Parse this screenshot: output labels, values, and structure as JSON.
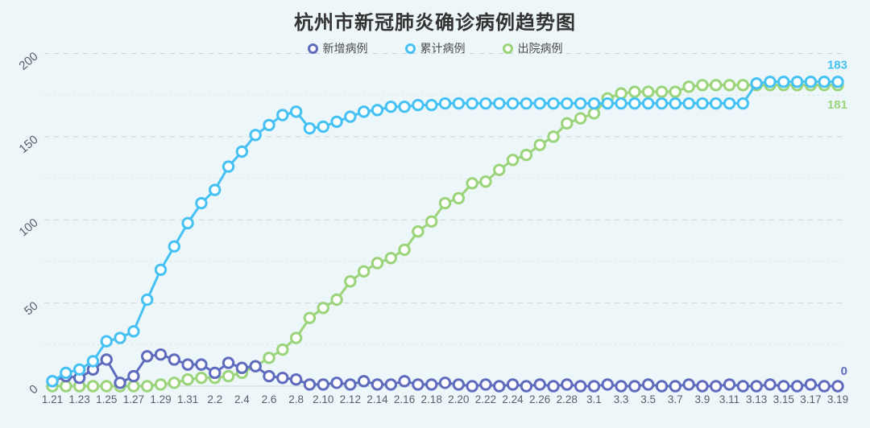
{
  "title": "杭州市新冠肺炎确诊病例趋势图",
  "colors": {
    "background": "#edf6f8",
    "title_text": "#333333",
    "axis_text": "#55606a",
    "grid_major": "#c9d6db",
    "grid_minor": "#d8e3e7",
    "axis_line": "#ccd6da"
  },
  "chart_data": {
    "type": "line",
    "title": "杭州市新冠肺炎确诊病例趋势图",
    "xlabel": "",
    "ylabel": "",
    "ylim": [
      0,
      200
    ],
    "y_ticks_labeled": [
      0,
      50,
      100,
      150,
      200
    ],
    "y_grid_interval": 25,
    "x_tick_step": 2,
    "grid": true,
    "legend_position": "top",
    "marker": "open-circle",
    "draw_order": [
      2,
      0,
      1
    ],
    "x": [
      "1.21",
      "1.22",
      "1.23",
      "1.24",
      "1.25",
      "1.26",
      "1.27",
      "1.28",
      "1.29",
      "1.30",
      "1.31",
      "2.1",
      "2.2",
      "2.3",
      "2.4",
      "2.5",
      "2.6",
      "2.7",
      "2.8",
      "2.9",
      "2.10",
      "2.11",
      "2.12",
      "2.13",
      "2.14",
      "2.15",
      "2.16",
      "2.17",
      "2.18",
      "2.19",
      "2.20",
      "2.21",
      "2.22",
      "2.23",
      "2.24",
      "2.25",
      "2.26",
      "2.27",
      "2.28",
      "2.29",
      "3.1",
      "3.2",
      "3.3",
      "3.4",
      "3.5",
      "3.6",
      "3.7",
      "3.8",
      "3.9",
      "3.10",
      "3.11",
      "3.12",
      "3.13",
      "3.14",
      "3.15",
      "3.16",
      "3.17",
      "3.18",
      "3.19"
    ],
    "series": [
      {
        "id": "new-cases",
        "name": "新增病例",
        "color": "#5f6cbe",
        "end_label": "0",
        "end_label_offset": -14,
        "values": [
          3,
          6,
          5,
          10,
          16,
          2,
          6,
          18,
          19,
          16,
          13,
          13,
          8,
          14,
          11,
          12,
          6,
          5,
          4,
          1,
          1,
          2,
          1,
          3,
          1,
          1,
          3,
          1,
          1,
          2,
          1,
          0,
          1,
          0,
          1,
          0,
          1,
          0,
          1,
          0,
          0,
          1,
          0,
          0,
          1,
          0,
          0,
          1,
          0,
          0,
          1,
          0,
          0,
          1,
          0,
          0,
          1,
          0,
          0
        ]
      },
      {
        "id": "cumulative-cases",
        "name": "累计病例",
        "color": "#45c2f3",
        "end_label": "183",
        "end_label_offset": -16,
        "values": [
          3,
          8,
          10,
          15,
          27,
          29,
          33,
          52,
          70,
          84,
          98,
          110,
          118,
          132,
          141,
          151,
          157,
          163,
          165,
          155,
          156,
          159,
          162,
          165,
          166,
          168,
          168,
          169,
          169,
          170,
          170,
          170,
          170,
          170,
          170,
          170,
          170,
          170,
          170,
          170,
          170,
          170,
          170,
          170,
          170,
          170,
          170,
          170,
          170,
          170,
          170,
          170,
          182,
          183,
          183,
          183,
          183,
          183,
          183
        ]
      },
      {
        "id": "discharged-cases",
        "name": "出院病例",
        "color": "#9bd47a",
        "end_label": "181",
        "end_label_offset": 29,
        "values": [
          0,
          0,
          0,
          0,
          0,
          0,
          0,
          0,
          1,
          2,
          4,
          5,
          5,
          6,
          8,
          12,
          17,
          22,
          29,
          41,
          47,
          52,
          63,
          69,
          74,
          77,
          82,
          93,
          99,
          110,
          113,
          122,
          123,
          130,
          136,
          139,
          145,
          150,
          158,
          161,
          164,
          173,
          176,
          177,
          177,
          177,
          177,
          180,
          181,
          181,
          181,
          181,
          181,
          181,
          181,
          181,
          181,
          181,
          181
        ]
      }
    ]
  }
}
